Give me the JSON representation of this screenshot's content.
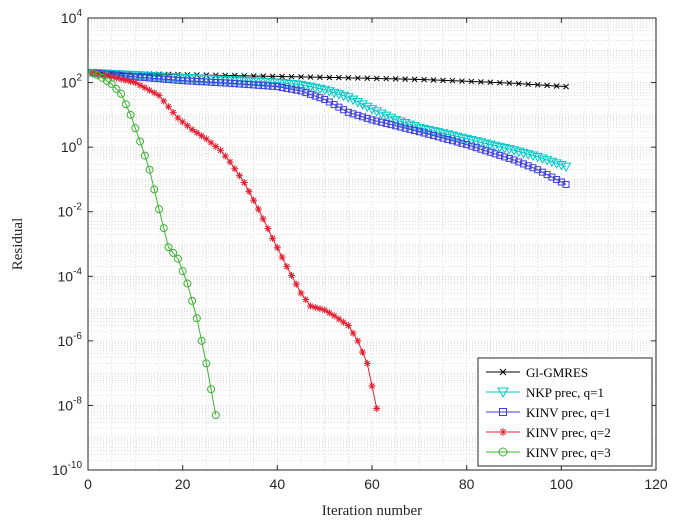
{
  "chart_data": {
    "type": "line",
    "title": "",
    "xlabel": "Iteration number",
    "ylabel": "Residual",
    "xlim": [
      0,
      120
    ],
    "ylim": [
      1e-10,
      10000.0
    ],
    "yscale": "log",
    "grid": "major and minor, dotted",
    "legend_position": "bottom-right",
    "x_ticks": [
      0,
      20,
      40,
      60,
      80,
      100,
      120
    ],
    "y_ticks": [
      {
        "value": 1e-10,
        "base": "10",
        "exp": "-10"
      },
      {
        "value": 1e-08,
        "base": "10",
        "exp": "-8"
      },
      {
        "value": 1e-06,
        "base": "10",
        "exp": "-6"
      },
      {
        "value": 0.0001,
        "base": "10",
        "exp": "-4"
      },
      {
        "value": 0.01,
        "base": "10",
        "exp": "-2"
      },
      {
        "value": 1,
        "base": "10",
        "exp": "0"
      },
      {
        "value": 100,
        "base": "10",
        "exp": "2"
      },
      {
        "value": 10000,
        "base": "10",
        "exp": "4"
      }
    ],
    "series": [
      {
        "name": "Gl-GMRES",
        "color": "#000000",
        "marker": "x",
        "points": [
          [
            1,
            200
          ],
          [
            10,
            190
          ],
          [
            20,
            175
          ],
          [
            30,
            165
          ],
          [
            40,
            155
          ],
          [
            50,
            145
          ],
          [
            60,
            135
          ],
          [
            70,
            125
          ],
          [
            80,
            110
          ],
          [
            90,
            95
          ],
          [
            101,
            75
          ]
        ]
      },
      {
        "name": "NKP prec, q=1",
        "color": "#00c8c8",
        "marker": "triangle-down",
        "points": [
          [
            1,
            200
          ],
          [
            10,
            170
          ],
          [
            20,
            140
          ],
          [
            30,
            120
          ],
          [
            40,
            100
          ],
          [
            45,
            85
          ],
          [
            50,
            60
          ],
          [
            55,
            35
          ],
          [
            60,
            15
          ],
          [
            65,
            7
          ],
          [
            70,
            4
          ],
          [
            80,
            1.8
          ],
          [
            90,
            0.8
          ],
          [
            95,
            0.5
          ],
          [
            101,
            0.25
          ]
        ]
      },
      {
        "name": "KINV prec, q=1",
        "color": "#3c3cdc",
        "marker": "square",
        "points": [
          [
            1,
            200
          ],
          [
            10,
            150
          ],
          [
            20,
            115
          ],
          [
            30,
            95
          ],
          [
            40,
            75
          ],
          [
            45,
            55
          ],
          [
            50,
            30
          ],
          [
            55,
            12
          ],
          [
            60,
            7
          ],
          [
            70,
            3
          ],
          [
            80,
            1.2
          ],
          [
            90,
            0.4
          ],
          [
            95,
            0.2
          ],
          [
            101,
            0.07
          ]
        ]
      },
      {
        "name": "KINV prec, q=2",
        "color": "#e61e32",
        "marker": "asterisk",
        "points": [
          [
            1,
            200
          ],
          [
            5,
            150
          ],
          [
            10,
            100
          ],
          [
            15,
            40
          ],
          [
            19,
            8
          ],
          [
            22,
            3.5
          ],
          [
            25,
            1.8
          ],
          [
            28,
            0.8
          ],
          [
            30,
            0.35
          ],
          [
            33,
            0.08
          ],
          [
            36,
            0.012
          ],
          [
            39,
            0.0015
          ],
          [
            42,
            0.0002
          ],
          [
            45,
            3e-05
          ],
          [
            47,
            1.2e-05
          ],
          [
            50,
            9e-06
          ],
          [
            52,
            6e-06
          ],
          [
            55,
            3e-06
          ],
          [
            57,
            1e-06
          ],
          [
            59,
            2e-07
          ],
          [
            61,
            8e-09
          ]
        ]
      },
      {
        "name": "KINV prec, q=3",
        "color": "#3cb432",
        "marker": "circle",
        "points": [
          [
            1,
            200
          ],
          [
            3,
            140
          ],
          [
            5,
            90
          ],
          [
            7,
            45
          ],
          [
            9,
            10
          ],
          [
            11,
            1.5
          ],
          [
            13,
            0.2
          ],
          [
            15,
            0.012
          ],
          [
            17,
            0.0008
          ],
          [
            19,
            0.00035
          ],
          [
            21,
            6e-05
          ],
          [
            23,
            5e-06
          ],
          [
            25,
            2e-07
          ],
          [
            27,
            5e-09
          ]
        ]
      }
    ]
  }
}
